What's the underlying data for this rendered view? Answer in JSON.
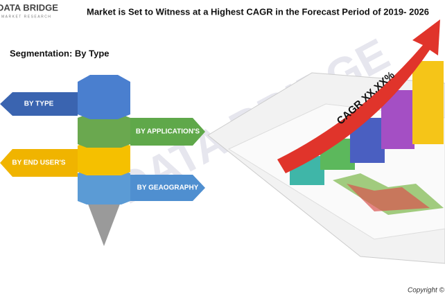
{
  "logo": {
    "name": "DATA BRIDGE",
    "tagline": "MARKET RESEARCH"
  },
  "title": "Market is Set to Witness at a Highest CAGR in the Forecast Period of 2019- 2026",
  "subtitle": "Segmentation: By Type",
  "segments": [
    "BY TYPE",
    "BY APPLICATION'S",
    "BY END USER'S",
    "BY GEAOGRAPHY"
  ],
  "cagr": "CAGR XX.XX%",
  "watermark": "DATA BRIDGE",
  "copyright": "Copyright ©"
}
